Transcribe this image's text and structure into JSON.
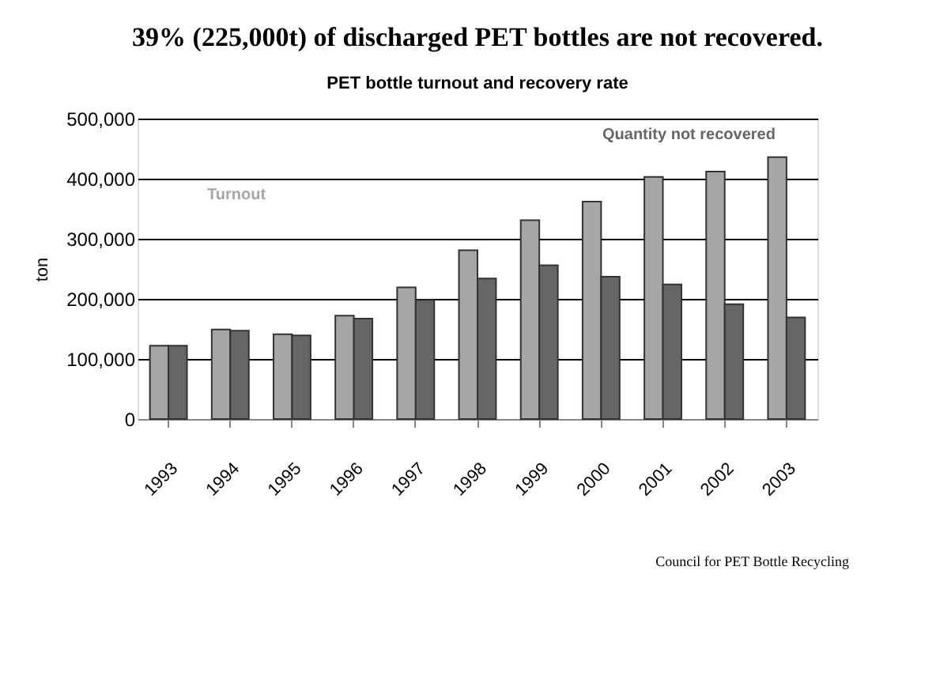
{
  "chart_data": {
    "type": "bar",
    "title": "39% (225,000t) of discharged PET bottles are not recovered.",
    "subtitle": "PET bottle turnout and recovery rate",
    "ylabel": "ton",
    "categories": [
      "1993",
      "1994",
      "1995",
      "1996",
      "1997",
      "1998",
      "1999",
      "2000",
      "2001",
      "2002",
      "2003"
    ],
    "series": [
      {
        "name": "Turnout",
        "color": "#a6a6a6",
        "values": [
          122000,
          149000,
          141000,
          172000,
          219000,
          281000,
          331000,
          362000,
          403000,
          412000,
          436000
        ]
      },
      {
        "name": "Quantity not recovered",
        "color": "#666666",
        "values": [
          122000,
          147000,
          139000,
          167000,
          198000,
          234000,
          256000,
          237000,
          224000,
          191000,
          169000
        ]
      }
    ],
    "ylim": [
      0,
      500000
    ],
    "yticks": [
      0,
      {
        "value": 100000,
        "label": "100,000"
      },
      {
        "value": 200000,
        "label": "200,000"
      },
      {
        "value": 300000,
        "label": "300,000"
      },
      {
        "value": 400000,
        "label": "400,000"
      },
      {
        "value": 500000,
        "label": "500,000"
      }
    ],
    "grid": "y",
    "legend": false,
    "annotations": [
      "Council for PET Bottle Recycling"
    ]
  }
}
